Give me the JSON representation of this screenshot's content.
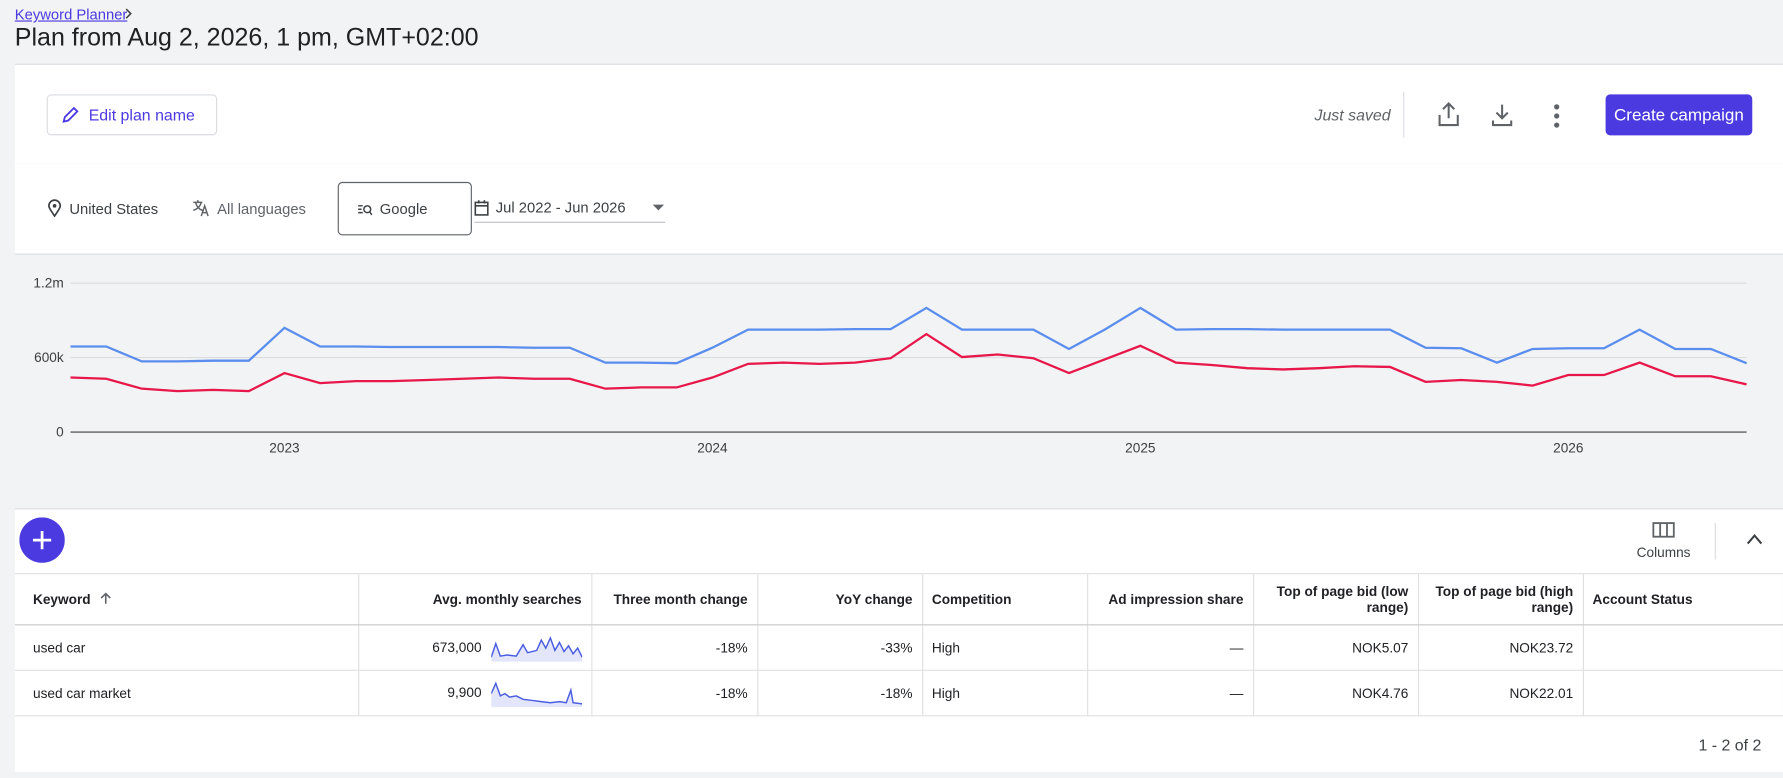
{
  "header": {
    "breadcrumb": "Keyword Planner",
    "title": "Plan from Aug 2, 2026, 1 pm, GMT+02:00"
  },
  "toolbar": {
    "edit_button": "Edit plan name",
    "status": "Just saved",
    "create_button": "Create campaign"
  },
  "filters": {
    "location": "United States",
    "language": "All languages",
    "network": "Google",
    "date_range": "Jul 2022 - Jun 2026"
  },
  "chart_data": {
    "type": "line",
    "x": [
      "2022-07",
      "2022-08",
      "2022-09",
      "2022-10",
      "2022-11",
      "2022-12",
      "2023-01",
      "2023-02",
      "2023-03",
      "2023-04",
      "2023-05",
      "2023-06",
      "2023-07",
      "2023-08",
      "2023-09",
      "2023-10",
      "2023-11",
      "2023-12",
      "2024-01",
      "2024-02",
      "2024-03",
      "2024-04",
      "2024-05",
      "2024-06",
      "2024-07",
      "2024-08",
      "2024-09",
      "2024-10",
      "2024-11",
      "2024-12",
      "2025-01",
      "2025-02",
      "2025-03",
      "2025-04",
      "2025-05",
      "2025-06",
      "2025-07",
      "2025-08",
      "2025-09",
      "2025-10",
      "2025-11",
      "2025-12",
      "2026-01",
      "2026-02",
      "2026-03",
      "2026-04",
      "2026-05",
      "2026-06"
    ],
    "series": [
      {
        "color": "#5b8def",
        "values": [
          690000,
          690000,
          570000,
          570000,
          575000,
          575000,
          840000,
          690000,
          690000,
          685000,
          685000,
          685000,
          685000,
          680000,
          680000,
          560000,
          560000,
          555000,
          680000,
          825000,
          825000,
          825000,
          830000,
          830000,
          1000000,
          825000,
          825000,
          825000,
          670000,
          825000,
          1000000,
          825000,
          830000,
          830000,
          825000,
          825000,
          825000,
          825000,
          680000,
          675000,
          560000,
          670000,
          675000,
          675000,
          825000,
          670000,
          670000,
          555000
        ]
      },
      {
        "color": "#e8174a",
        "values": [
          440000,
          430000,
          350000,
          330000,
          340000,
          330000,
          475000,
          395000,
          410000,
          410000,
          420000,
          430000,
          440000,
          430000,
          430000,
          350000,
          360000,
          360000,
          440000,
          550000,
          560000,
          550000,
          560000,
          595000,
          790000,
          605000,
          625000,
          595000,
          475000,
          585000,
          695000,
          560000,
          540000,
          515000,
          505000,
          515000,
          530000,
          525000,
          405000,
          420000,
          405000,
          375000,
          460000,
          460000,
          560000,
          450000,
          450000,
          385000
        ]
      }
    ],
    "xlim": [
      "2022-07",
      "2026-06"
    ],
    "xticks": [
      {
        "value": "2023-01",
        "label": "2023"
      },
      {
        "value": "2024-01",
        "label": "2024"
      },
      {
        "value": "2025-01",
        "label": "2025"
      },
      {
        "value": "2026-01",
        "label": "2026"
      }
    ],
    "ylim": [
      0,
      1200000
    ],
    "yticks": [
      0,
      {
        "value": 600000,
        "label": "600k"
      },
      {
        "value": 1200000,
        "label": "1.2m"
      }
    ],
    "grid": true
  },
  "table": {
    "columns_button": "Columns",
    "columns": [
      "Keyword",
      "Avg. monthly searches",
      "Three month change",
      "YoY change",
      "Competition",
      "Ad impression share",
      "Top of page bid (low range)",
      "Top of page bid (high range)",
      "Account Status"
    ],
    "rows": [
      [
        "used car",
        "673,000",
        "-18%",
        "-33%",
        "High",
        "—",
        "NOK5.07",
        "NOK23.72"
      ],
      [
        "used car market",
        "9,900",
        "-18%",
        "-18%",
        "High",
        "—",
        "NOK4.76",
        "NOK22.01"
      ]
    ],
    "pagination": "1 - 2 of 2"
  }
}
